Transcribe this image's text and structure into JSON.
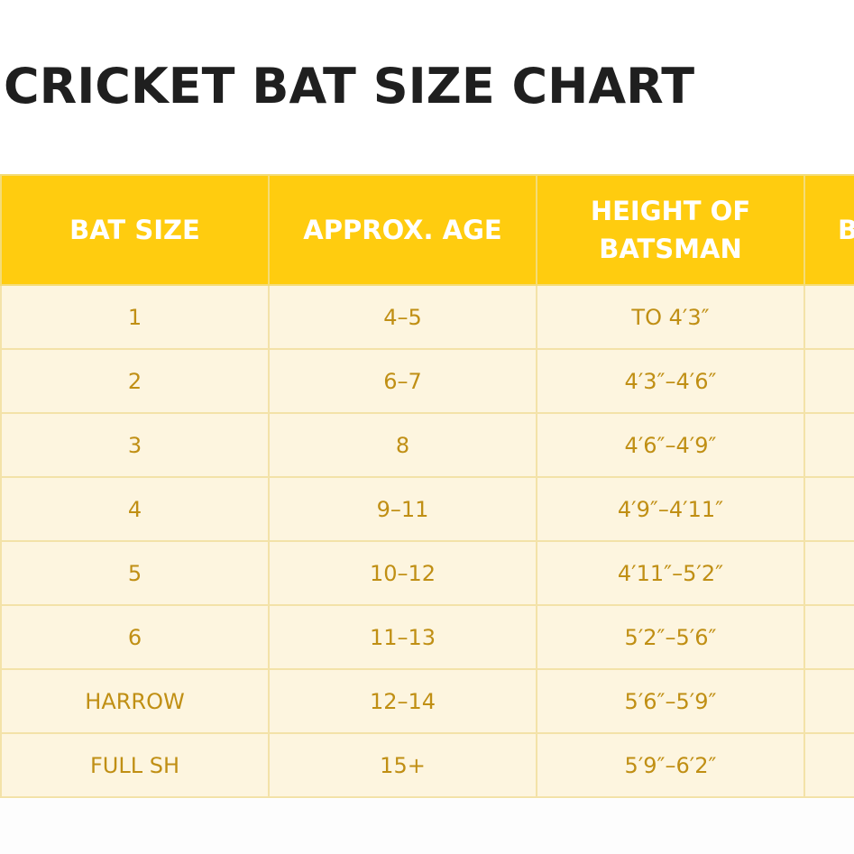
{
  "title": "CRICKET BAT SIZE CHART",
  "colors": {
    "header_bg": "#ffcc0f",
    "header_text": "#ffffff",
    "row_bg": "#fdf5df",
    "row_text": "#c08f14",
    "grid": "#f3e2a8",
    "title_text": "#1f1f1f"
  },
  "table": {
    "headers": [
      {
        "line1": "BAT SIZE",
        "line2": ""
      },
      {
        "line1": "APPROX. AGE",
        "line2": ""
      },
      {
        "line1": "HEIGHT OF",
        "line2": "BATSMAN"
      },
      {
        "line1": "B",
        "line2": ""
      }
    ],
    "rows": [
      [
        "1",
        "4–5",
        "TO 4′3″",
        ""
      ],
      [
        "2",
        "6–7",
        "4′3″–4′6″",
        ""
      ],
      [
        "3",
        "8",
        "4′6″–4′9″",
        ""
      ],
      [
        "4",
        "9–11",
        "4′9″–4′11″",
        ""
      ],
      [
        "5",
        "10–12",
        "4′11″–5′2″",
        ""
      ],
      [
        "6",
        "11–13",
        "5′2″–5′6″",
        ""
      ],
      [
        "HARROW",
        "12–14",
        "5′6″–5′9″",
        ""
      ],
      [
        "FULL SH",
        "15+",
        "5′9″–6′2″",
        ""
      ]
    ]
  }
}
